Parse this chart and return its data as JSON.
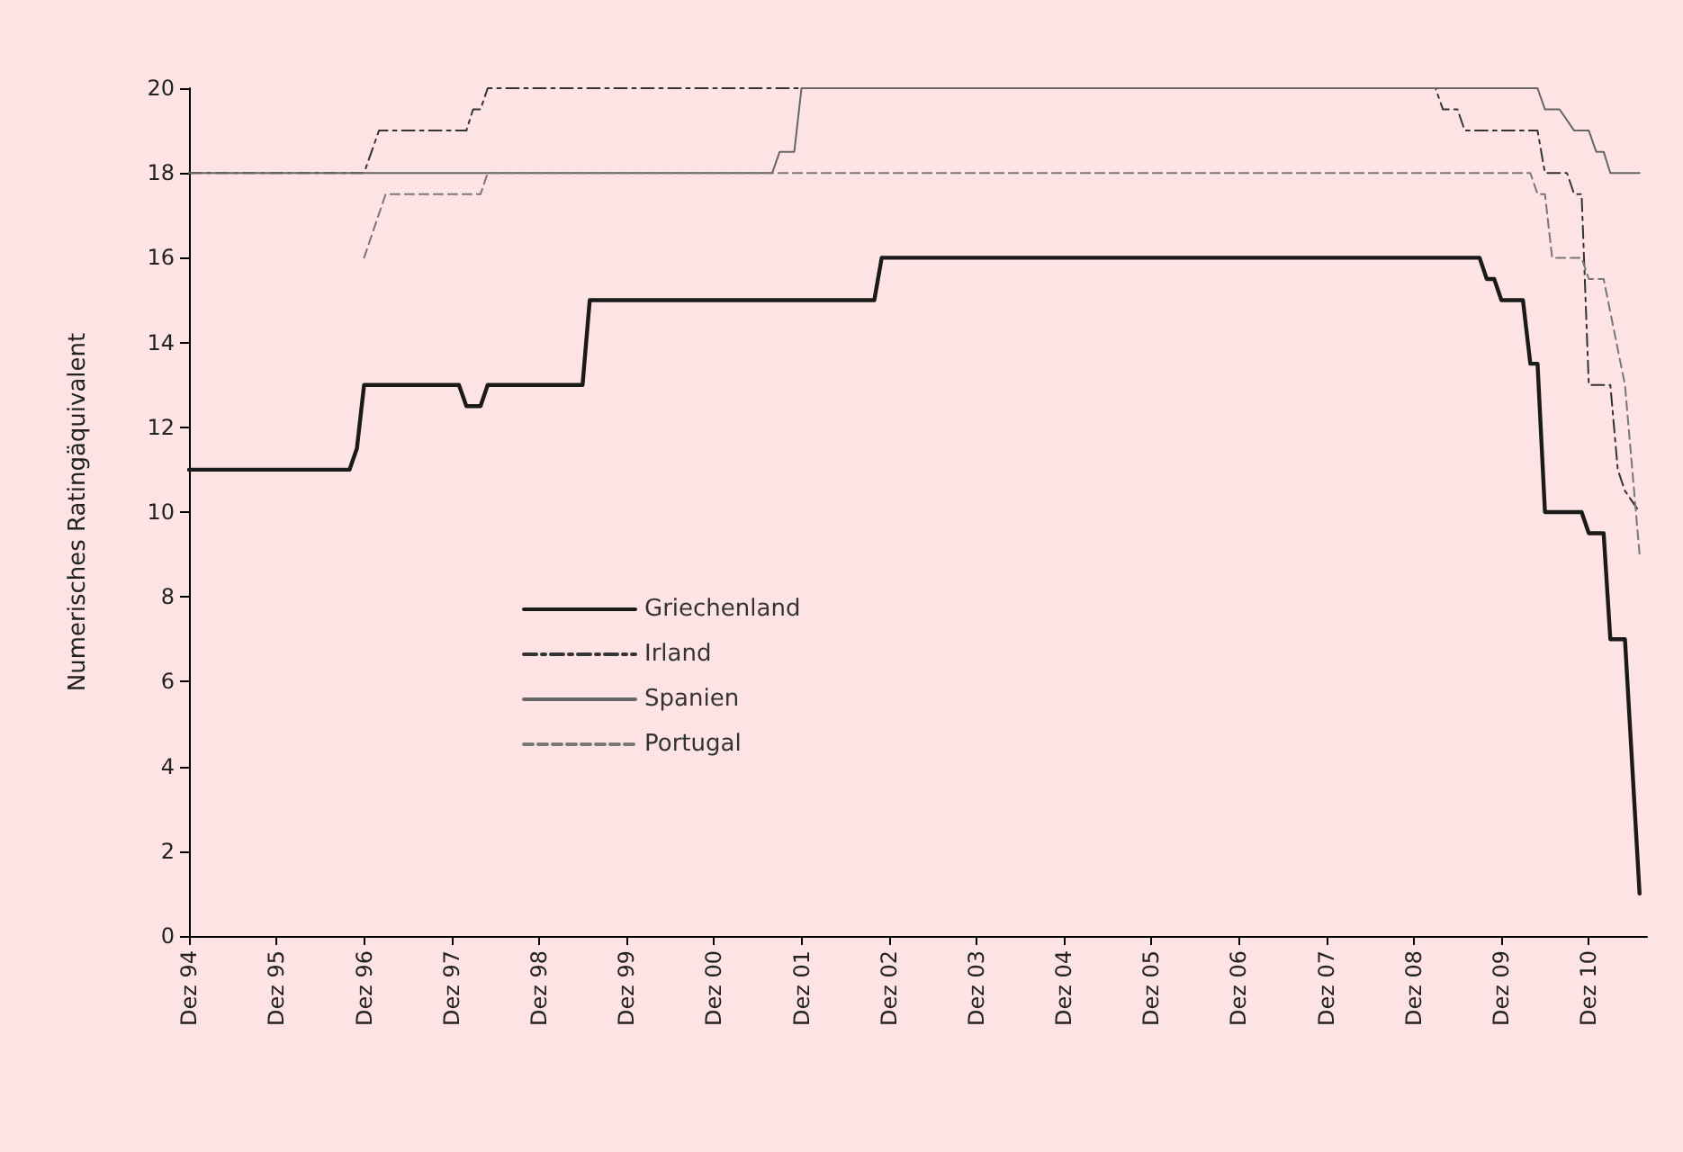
{
  "chart_data": {
    "type": "line",
    "ylabel": "Numerisches Ratingäquivalent",
    "xlim": [
      "1994-12",
      "2011-08"
    ],
    "xticks": [
      {
        "value": "1994-12",
        "label": "Dez 94"
      },
      {
        "value": "1995-12",
        "label": "Dez 95"
      },
      {
        "value": "1996-12",
        "label": "Dez 96"
      },
      {
        "value": "1997-12",
        "label": "Dez 97"
      },
      {
        "value": "1998-12",
        "label": "Dez 98"
      },
      {
        "value": "1999-12",
        "label": "Dez 99"
      },
      {
        "value": "2000-12",
        "label": "Dez 00"
      },
      {
        "value": "2001-12",
        "label": "Dez 01"
      },
      {
        "value": "2002-12",
        "label": "Dez 02"
      },
      {
        "value": "2003-12",
        "label": "Dez 03"
      },
      {
        "value": "2004-12",
        "label": "Dez 04"
      },
      {
        "value": "2005-12",
        "label": "Dez 05"
      },
      {
        "value": "2006-12",
        "label": "Dez 06"
      },
      {
        "value": "2007-12",
        "label": "Dez 07"
      },
      {
        "value": "2008-12",
        "label": "Dez 08"
      },
      {
        "value": "2009-12",
        "label": "Dez 09"
      },
      {
        "value": "2010-12",
        "label": "Dez 10"
      }
    ],
    "ylim": [
      0,
      20
    ],
    "yticks": [
      0,
      2,
      4,
      6,
      8,
      10,
      12,
      14,
      16,
      18,
      20
    ],
    "legend": "bottom",
    "marker": "none",
    "series": [
      {
        "name": "Griechenland",
        "color": "#1a1a1a",
        "line_style": "solid",
        "x": [
          "1994-12",
          "1996-10",
          "1996-11",
          "1996-12",
          "1998-01",
          "1998-02",
          "1998-04",
          "1998-05",
          "1999-06",
          "1999-07",
          "2002-10",
          "2002-11",
          "2009-09",
          "2009-10",
          "2009-11",
          "2009-12",
          "2010-03",
          "2010-04",
          "2010-05",
          "2010-06",
          "2010-11",
          "2010-12",
          "2011-02",
          "2011-03",
          "2011-05",
          "2011-07"
        ],
        "values": [
          11,
          11,
          11.5,
          13,
          13,
          12.5,
          12.5,
          13,
          13,
          15,
          15,
          16,
          16,
          15.5,
          15.5,
          15,
          15,
          13.5,
          13.5,
          10,
          10,
          9.5,
          9.5,
          7,
          7,
          1
        ]
      },
      {
        "name": "Irland",
        "color": "#333333",
        "line_style": "dashdot",
        "x": [
          "1994-12",
          "1996-12",
          "1997-02",
          "1998-02",
          "1998-03",
          "1998-04",
          "1998-05",
          "2009-03",
          "2009-04",
          "2009-06",
          "2009-07",
          "2010-05",
          "2010-06",
          "2010-09",
          "2010-10",
          "2010-11",
          "2010-12",
          "2011-03",
          "2011-04",
          "2011-05",
          "2011-07"
        ],
        "values": [
          18,
          18,
          19,
          19,
          19.5,
          19.5,
          20,
          20,
          19.5,
          19.5,
          19,
          19,
          18,
          18,
          17.5,
          17.5,
          13,
          13,
          11,
          10.5,
          10
        ]
      },
      {
        "name": "Spanien",
        "color": "#666666",
        "line_style": "solid",
        "x": [
          "1994-12",
          "2001-08",
          "2001-09",
          "2001-11",
          "2001-12",
          "2010-05",
          "2010-06",
          "2010-08",
          "2010-10",
          "2010-12",
          "2011-01",
          "2011-02",
          "2011-03",
          "2011-07"
        ],
        "values": [
          18,
          18,
          18.5,
          18.5,
          20,
          20,
          19.5,
          19.5,
          19,
          19,
          18.5,
          18.5,
          18,
          18
        ]
      },
      {
        "name": "Portugal",
        "color": "#777777",
        "line_style": "dashed",
        "x": [
          "1996-12",
          "1997-03",
          "1998-04",
          "1998-05",
          "2010-04",
          "2010-05",
          "2010-06",
          "2010-07",
          "2010-11",
          "2010-12",
          "2011-02",
          "2011-05",
          "2011-07"
        ],
        "values": [
          16,
          17.5,
          17.5,
          18,
          18,
          17.5,
          17.5,
          16,
          16,
          15.5,
          15.5,
          13,
          9
        ]
      }
    ]
  }
}
